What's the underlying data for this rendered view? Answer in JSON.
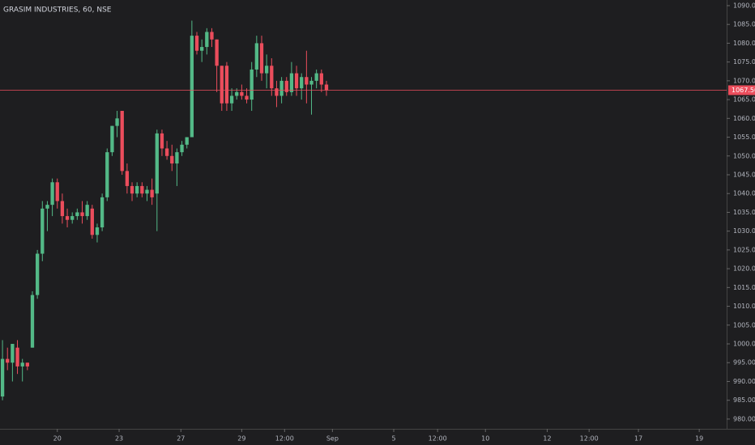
{
  "chart_data": {
    "type": "candlestick",
    "title": "GRASIM INDUSTRIES, 60, NSE",
    "x": [
      0,
      1,
      2,
      3,
      4,
      5,
      6,
      7,
      8,
      9,
      10,
      11,
      12,
      13,
      14,
      15,
      16,
      17,
      18,
      19,
      20,
      21,
      22,
      23,
      24,
      25,
      26,
      27,
      28,
      29,
      30,
      31,
      32,
      33,
      34,
      35,
      36,
      37,
      38,
      39,
      40,
      41,
      42,
      43,
      44,
      45,
      46,
      47,
      48,
      49,
      50,
      51,
      52,
      53,
      54,
      55,
      56,
      57,
      58,
      59,
      60,
      61,
      62,
      63,
      64,
      65
    ],
    "open": [
      986,
      996,
      995,
      999,
      994,
      995,
      999,
      1013,
      1024,
      1036,
      1037,
      1043,
      1038,
      1034,
      1033,
      1034,
      1035,
      1034,
      1036,
      1029,
      1031,
      1039,
      1051,
      1058,
      1062,
      1046,
      1042,
      1040,
      1042,
      1040,
      1041,
      1040,
      1056,
      1052,
      1050,
      1048,
      1051,
      1053,
      1055,
      1082,
      1078,
      1079,
      1083,
      1081,
      1074,
      1074,
      1064,
      1066,
      1067,
      1066,
      1065,
      1073,
      1080,
      1072,
      1074,
      1068,
      1066,
      1070,
      1067,
      1072,
      1068,
      1071,
      1069,
      1070,
      1072,
      1069
    ],
    "high": [
      1001,
      999,
      1000,
      1001,
      996,
      995,
      1014,
      1025,
      1038,
      1038,
      1044,
      1044,
      1040,
      1036,
      1035,
      1036,
      1038,
      1038,
      1037,
      1032,
      1040,
      1052,
      1058,
      1062,
      1062,
      1048,
      1043,
      1043,
      1043,
      1042,
      1044,
      1057,
      1057,
      1054,
      1053,
      1052,
      1054,
      1055,
      1086,
      1083,
      1081,
      1084,
      1084,
      1081,
      1074,
      1075,
      1068,
      1068,
      1069,
      1068,
      1075,
      1082,
      1082,
      1077,
      1076,
      1070,
      1071,
      1071,
      1075,
      1074,
      1072,
      1078,
      1071,
      1073,
      1073,
      1070
    ],
    "low": [
      985,
      993,
      990,
      992,
      990,
      993,
      999,
      1012,
      1022,
      1030,
      1034,
      1036,
      1032,
      1031,
      1032,
      1033,
      1032,
      1033,
      1028,
      1027,
      1030,
      1038,
      1050,
      1055,
      1045,
      1040,
      1038,
      1039,
      1039,
      1038,
      1037,
      1030,
      1050,
      1049,
      1046,
      1042,
      1050,
      1052,
      1055,
      1077,
      1075,
      1077,
      1079,
      1067,
      1062,
      1062,
      1062,
      1065,
      1065,
      1064,
      1062,
      1071,
      1070,
      1068,
      1066,
      1063,
      1064,
      1066,
      1066,
      1066,
      1065,
      1064,
      1061,
      1068,
      1067,
      1066
    ],
    "close": [
      996,
      995,
      1000,
      994,
      995,
      994,
      1013,
      1024,
      1036,
      1037,
      1043,
      1038,
      1034,
      1033,
      1034,
      1035,
      1034,
      1037,
      1029,
      1031,
      1039,
      1051,
      1058,
      1060,
      1046,
      1042,
      1040,
      1042,
      1040,
      1041,
      1039,
      1056,
      1052,
      1050,
      1048,
      1051,
      1053,
      1055,
      1082,
      1078,
      1079,
      1083,
      1081,
      1074,
      1064,
      1064,
      1066,
      1067,
      1066,
      1065,
      1073,
      1080,
      1072,
      1074,
      1068,
      1066,
      1070,
      1067,
      1072,
      1068,
      1071,
      1069,
      1070,
      1072,
      1069,
      1067.5
    ],
    "up_color": "#53b987",
    "down_color": "#eb4d5c",
    "xlim": [
      -0.5,
      145.3
    ],
    "xticks": [
      {
        "value": 11.0,
        "label": "20"
      },
      {
        "value": 23.4,
        "label": "23"
      },
      {
        "value": 35.8,
        "label": "27"
      },
      {
        "value": 48.0,
        "label": "29"
      },
      {
        "value": 56.6,
        "label": "12:00"
      },
      {
        "value": 66.2,
        "label": "Sep"
      },
      {
        "value": 78.5,
        "label": "5"
      },
      {
        "value": 87.3,
        "label": "12:00"
      },
      {
        "value": 96.9,
        "label": "10"
      },
      {
        "value": 109.3,
        "label": "12"
      },
      {
        "value": 117.7,
        "label": "12:00"
      },
      {
        "value": 127.6,
        "label": "17"
      },
      {
        "value": 139.8,
        "label": "19"
      }
    ],
    "ylim": [
      977.4,
      1091.5
    ],
    "yticks": [
      {
        "value": 980,
        "label": "980.00"
      },
      {
        "value": 985,
        "label": "985.00"
      },
      {
        "value": 990,
        "label": "990.00"
      },
      {
        "value": 995,
        "label": "995.00"
      },
      {
        "value": 1000,
        "label": "1000.00"
      },
      {
        "value": 1005,
        "label": "1005.00"
      },
      {
        "value": 1010,
        "label": "1010.00"
      },
      {
        "value": 1015,
        "label": "1015.00"
      },
      {
        "value": 1020,
        "label": "1020.00"
      },
      {
        "value": 1025,
        "label": "1025.00"
      },
      {
        "value": 1030,
        "label": "1030.00"
      },
      {
        "value": 1035,
        "label": "1035.00"
      },
      {
        "value": 1040,
        "label": "1040.00"
      },
      {
        "value": 1045,
        "label": "1045.00"
      },
      {
        "value": 1050,
        "label": "1050.00"
      },
      {
        "value": 1055,
        "label": "1055.00"
      },
      {
        "value": 1060,
        "label": "1060.00"
      },
      {
        "value": 1065,
        "label": "1065.00"
      },
      {
        "value": 1070,
        "label": "1070.00"
      },
      {
        "value": 1075,
        "label": "1075.00"
      },
      {
        "value": 1080,
        "label": "1080.00"
      },
      {
        "value": 1085,
        "label": "1085.00"
      },
      {
        "value": 1090,
        "label": "1090.00"
      }
    ],
    "last_price": {
      "value": 1067.5,
      "label": "1067.50",
      "color": "#eb4d5c"
    }
  }
}
